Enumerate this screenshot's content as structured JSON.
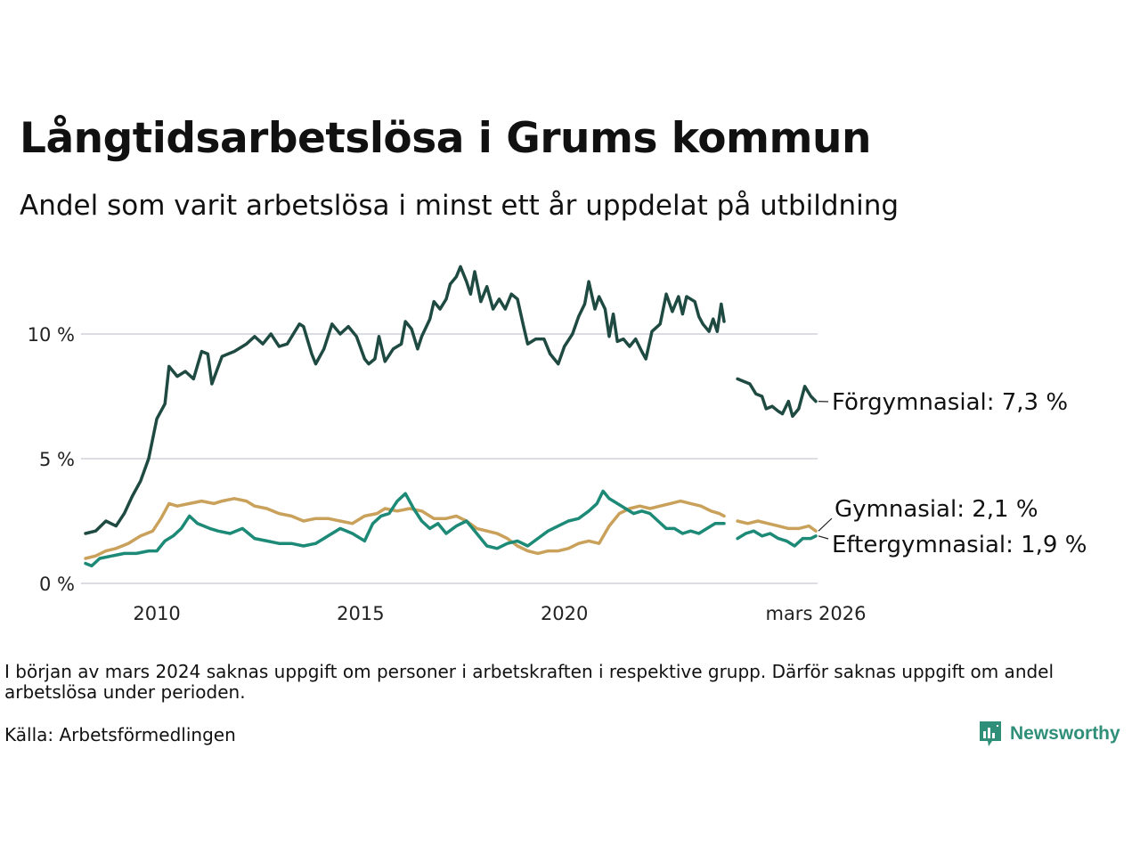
{
  "title": "Långtidsarbetslösa i Grums kommun",
  "subtitle": "Andel som varit arbetslösa i minst ett år uppdelat på utbildning",
  "note": "I början av mars 2024 saknas uppgift om personer i arbetskraften i respektive grupp. Därför saknas uppgift om andel arbetslösa under perioden.",
  "source": "Källa: Arbetsförmedlingen",
  "logo_text": "Newsworthy",
  "colors": {
    "forgymnasial": "#1f4a42",
    "gymnasial": "#c9a15b",
    "eftergymnasial": "#1c8a76",
    "grid": "#dcdce3",
    "brand": "#2f8f79"
  },
  "chart_data": {
    "type": "line",
    "title": "Långtidsarbetslösa i Grums kommun",
    "xlabel": "",
    "ylabel": "",
    "x_range": [
      2008.25,
      2026.17
    ],
    "ylim": [
      0,
      13
    ],
    "y_ticks": [
      0,
      5,
      10
    ],
    "y_tick_labels": [
      "0 %",
      "5 %",
      "10 %"
    ],
    "x_ticks": [
      2010,
      2015,
      2020,
      2026.17
    ],
    "x_tick_labels": [
      "2010",
      "2015",
      "2020",
      "mars 2026"
    ],
    "grid": true,
    "gap": [
      2023.92,
      2024.25
    ],
    "series": [
      {
        "name": "Förgymnasial",
        "end_label": "Förgymnasial: 7,3 %",
        "color_key": "forgymnasial",
        "points": [
          [
            2008.25,
            2.0
          ],
          [
            2008.5,
            2.1
          ],
          [
            2008.75,
            2.5
          ],
          [
            2009.0,
            2.3
          ],
          [
            2009.2,
            2.8
          ],
          [
            2009.4,
            3.5
          ],
          [
            2009.6,
            4.1
          ],
          [
            2009.8,
            5.0
          ],
          [
            2010.0,
            6.6
          ],
          [
            2010.2,
            7.2
          ],
          [
            2010.3,
            8.7
          ],
          [
            2010.5,
            8.3
          ],
          [
            2010.7,
            8.5
          ],
          [
            2010.9,
            8.2
          ],
          [
            2011.1,
            9.3
          ],
          [
            2011.25,
            9.2
          ],
          [
            2011.35,
            8.0
          ],
          [
            2011.6,
            9.1
          ],
          [
            2011.9,
            9.3
          ],
          [
            2012.2,
            9.6
          ],
          [
            2012.4,
            9.9
          ],
          [
            2012.6,
            9.6
          ],
          [
            2012.8,
            10.0
          ],
          [
            2013.0,
            9.5
          ],
          [
            2013.2,
            9.6
          ],
          [
            2013.5,
            10.4
          ],
          [
            2013.6,
            10.3
          ],
          [
            2013.8,
            9.2
          ],
          [
            2013.9,
            8.8
          ],
          [
            2014.1,
            9.4
          ],
          [
            2014.3,
            10.4
          ],
          [
            2014.5,
            10.0
          ],
          [
            2014.7,
            10.3
          ],
          [
            2014.9,
            9.9
          ],
          [
            2015.1,
            9.0
          ],
          [
            2015.2,
            8.8
          ],
          [
            2015.35,
            9.0
          ],
          [
            2015.45,
            9.9
          ],
          [
            2015.6,
            8.9
          ],
          [
            2015.8,
            9.4
          ],
          [
            2016.0,
            9.6
          ],
          [
            2016.1,
            10.5
          ],
          [
            2016.25,
            10.2
          ],
          [
            2016.4,
            9.4
          ],
          [
            2016.5,
            9.9
          ],
          [
            2016.7,
            10.6
          ],
          [
            2016.8,
            11.3
          ],
          [
            2016.95,
            11.0
          ],
          [
            2017.1,
            11.4
          ],
          [
            2017.2,
            12.0
          ],
          [
            2017.35,
            12.3
          ],
          [
            2017.45,
            12.7
          ],
          [
            2017.6,
            12.1
          ],
          [
            2017.7,
            11.6
          ],
          [
            2017.8,
            12.5
          ],
          [
            2017.95,
            11.3
          ],
          [
            2018.1,
            11.9
          ],
          [
            2018.25,
            11.0
          ],
          [
            2018.4,
            11.4
          ],
          [
            2018.55,
            11.0
          ],
          [
            2018.7,
            11.6
          ],
          [
            2018.85,
            11.4
          ],
          [
            2019.0,
            10.3
          ],
          [
            2019.1,
            9.6
          ],
          [
            2019.3,
            9.8
          ],
          [
            2019.5,
            9.8
          ],
          [
            2019.65,
            9.2
          ],
          [
            2019.85,
            8.8
          ],
          [
            2020.0,
            9.5
          ],
          [
            2020.2,
            10.0
          ],
          [
            2020.35,
            10.7
          ],
          [
            2020.5,
            11.2
          ],
          [
            2020.6,
            12.1
          ],
          [
            2020.75,
            11.0
          ],
          [
            2020.85,
            11.5
          ],
          [
            2021.0,
            11.0
          ],
          [
            2021.1,
            9.9
          ],
          [
            2021.2,
            10.8
          ],
          [
            2021.3,
            9.7
          ],
          [
            2021.45,
            9.8
          ],
          [
            2021.6,
            9.5
          ],
          [
            2021.75,
            9.8
          ],
          [
            2021.9,
            9.3
          ],
          [
            2022.0,
            9.0
          ],
          [
            2022.15,
            10.1
          ],
          [
            2022.35,
            10.4
          ],
          [
            2022.5,
            11.6
          ],
          [
            2022.65,
            10.9
          ],
          [
            2022.8,
            11.5
          ],
          [
            2022.9,
            10.8
          ],
          [
            2023.0,
            11.5
          ],
          [
            2023.2,
            11.3
          ],
          [
            2023.3,
            10.7
          ],
          [
            2023.4,
            10.4
          ],
          [
            2023.55,
            10.1
          ],
          [
            2023.65,
            10.6
          ],
          [
            2023.75,
            10.1
          ],
          [
            2023.85,
            11.2
          ],
          [
            2023.92,
            10.5
          ],
          [
            null,
            null
          ],
          [
            2024.25,
            8.2
          ],
          [
            2024.4,
            8.1
          ],
          [
            2024.55,
            8.0
          ],
          [
            2024.7,
            7.6
          ],
          [
            2024.85,
            7.5
          ],
          [
            2024.95,
            7.0
          ],
          [
            2025.1,
            7.1
          ],
          [
            2025.25,
            6.9
          ],
          [
            2025.35,
            6.8
          ],
          [
            2025.5,
            7.3
          ],
          [
            2025.6,
            6.7
          ],
          [
            2025.75,
            7.0
          ],
          [
            2025.9,
            7.9
          ],
          [
            2026.05,
            7.5
          ],
          [
            2026.17,
            7.3
          ]
        ]
      },
      {
        "name": "Gymnasial",
        "end_label": "Gymnasial: 2,1 %",
        "color_key": "gymnasial",
        "points": [
          [
            2008.25,
            1.0
          ],
          [
            2008.5,
            1.1
          ],
          [
            2008.75,
            1.3
          ],
          [
            2009.0,
            1.4
          ],
          [
            2009.3,
            1.6
          ],
          [
            2009.6,
            1.9
          ],
          [
            2009.9,
            2.1
          ],
          [
            2010.1,
            2.6
          ],
          [
            2010.3,
            3.2
          ],
          [
            2010.5,
            3.1
          ],
          [
            2010.8,
            3.2
          ],
          [
            2011.1,
            3.3
          ],
          [
            2011.4,
            3.2
          ],
          [
            2011.6,
            3.3
          ],
          [
            2011.9,
            3.4
          ],
          [
            2012.2,
            3.3
          ],
          [
            2012.4,
            3.1
          ],
          [
            2012.7,
            3.0
          ],
          [
            2013.0,
            2.8
          ],
          [
            2013.3,
            2.7
          ],
          [
            2013.6,
            2.5
          ],
          [
            2013.9,
            2.6
          ],
          [
            2014.2,
            2.6
          ],
          [
            2014.5,
            2.5
          ],
          [
            2014.8,
            2.4
          ],
          [
            2015.1,
            2.7
          ],
          [
            2015.4,
            2.8
          ],
          [
            2015.6,
            3.0
          ],
          [
            2015.9,
            2.9
          ],
          [
            2016.2,
            3.0
          ],
          [
            2016.5,
            2.9
          ],
          [
            2016.8,
            2.6
          ],
          [
            2017.1,
            2.6
          ],
          [
            2017.35,
            2.7
          ],
          [
            2017.6,
            2.5
          ],
          [
            2017.85,
            2.2
          ],
          [
            2018.1,
            2.1
          ],
          [
            2018.35,
            2.0
          ],
          [
            2018.6,
            1.8
          ],
          [
            2018.85,
            1.5
          ],
          [
            2019.1,
            1.3
          ],
          [
            2019.35,
            1.2
          ],
          [
            2019.6,
            1.3
          ],
          [
            2019.85,
            1.3
          ],
          [
            2020.1,
            1.4
          ],
          [
            2020.35,
            1.6
          ],
          [
            2020.6,
            1.7
          ],
          [
            2020.85,
            1.6
          ],
          [
            2021.1,
            2.3
          ],
          [
            2021.35,
            2.8
          ],
          [
            2021.6,
            3.0
          ],
          [
            2021.85,
            3.1
          ],
          [
            2022.1,
            3.0
          ],
          [
            2022.35,
            3.1
          ],
          [
            2022.6,
            3.2
          ],
          [
            2022.85,
            3.3
          ],
          [
            2023.1,
            3.2
          ],
          [
            2023.35,
            3.1
          ],
          [
            2023.6,
            2.9
          ],
          [
            2023.8,
            2.8
          ],
          [
            2023.92,
            2.7
          ],
          [
            null,
            null
          ],
          [
            2024.25,
            2.5
          ],
          [
            2024.5,
            2.4
          ],
          [
            2024.75,
            2.5
          ],
          [
            2025.0,
            2.4
          ],
          [
            2025.25,
            2.3
          ],
          [
            2025.5,
            2.2
          ],
          [
            2025.75,
            2.2
          ],
          [
            2026.0,
            2.3
          ],
          [
            2026.17,
            2.1
          ]
        ]
      },
      {
        "name": "Eftergymnasial",
        "end_label": "Eftergymnasial: 1,9 %",
        "color_key": "eftergymnasial",
        "points": [
          [
            2008.25,
            0.8
          ],
          [
            2008.4,
            0.7
          ],
          [
            2008.6,
            1.0
          ],
          [
            2008.9,
            1.1
          ],
          [
            2009.2,
            1.2
          ],
          [
            2009.5,
            1.2
          ],
          [
            2009.8,
            1.3
          ],
          [
            2010.0,
            1.3
          ],
          [
            2010.2,
            1.7
          ],
          [
            2010.4,
            1.9
          ],
          [
            2010.6,
            2.2
          ],
          [
            2010.8,
            2.7
          ],
          [
            2011.0,
            2.4
          ],
          [
            2011.3,
            2.2
          ],
          [
            2011.5,
            2.1
          ],
          [
            2011.8,
            2.0
          ],
          [
            2012.1,
            2.2
          ],
          [
            2012.4,
            1.8
          ],
          [
            2012.7,
            1.7
          ],
          [
            2013.0,
            1.6
          ],
          [
            2013.3,
            1.6
          ],
          [
            2013.6,
            1.5
          ],
          [
            2013.9,
            1.6
          ],
          [
            2014.2,
            1.9
          ],
          [
            2014.5,
            2.2
          ],
          [
            2014.8,
            2.0
          ],
          [
            2015.1,
            1.7
          ],
          [
            2015.3,
            2.4
          ],
          [
            2015.5,
            2.7
          ],
          [
            2015.7,
            2.8
          ],
          [
            2015.9,
            3.3
          ],
          [
            2016.1,
            3.6
          ],
          [
            2016.3,
            3.0
          ],
          [
            2016.5,
            2.5
          ],
          [
            2016.7,
            2.2
          ],
          [
            2016.9,
            2.4
          ],
          [
            2017.1,
            2.0
          ],
          [
            2017.35,
            2.3
          ],
          [
            2017.6,
            2.5
          ],
          [
            2017.85,
            2.0
          ],
          [
            2018.1,
            1.5
          ],
          [
            2018.35,
            1.4
          ],
          [
            2018.6,
            1.6
          ],
          [
            2018.85,
            1.7
          ],
          [
            2019.1,
            1.5
          ],
          [
            2019.35,
            1.8
          ],
          [
            2019.6,
            2.1
          ],
          [
            2019.85,
            2.3
          ],
          [
            2020.1,
            2.5
          ],
          [
            2020.35,
            2.6
          ],
          [
            2020.6,
            2.9
          ],
          [
            2020.8,
            3.2
          ],
          [
            2020.95,
            3.7
          ],
          [
            2021.1,
            3.4
          ],
          [
            2021.3,
            3.2
          ],
          [
            2021.5,
            3.0
          ],
          [
            2021.7,
            2.8
          ],
          [
            2021.9,
            2.9
          ],
          [
            2022.1,
            2.8
          ],
          [
            2022.3,
            2.5
          ],
          [
            2022.5,
            2.2
          ],
          [
            2022.7,
            2.2
          ],
          [
            2022.9,
            2.0
          ],
          [
            2023.1,
            2.1
          ],
          [
            2023.3,
            2.0
          ],
          [
            2023.5,
            2.2
          ],
          [
            2023.7,
            2.4
          ],
          [
            2023.92,
            2.4
          ],
          [
            null,
            null
          ],
          [
            2024.25,
            1.8
          ],
          [
            2024.45,
            2.0
          ],
          [
            2024.65,
            2.1
          ],
          [
            2024.85,
            1.9
          ],
          [
            2025.05,
            2.0
          ],
          [
            2025.25,
            1.8
          ],
          [
            2025.45,
            1.7
          ],
          [
            2025.65,
            1.5
          ],
          [
            2025.85,
            1.8
          ],
          [
            2026.05,
            1.8
          ],
          [
            2026.17,
            1.9
          ]
        ]
      }
    ]
  }
}
